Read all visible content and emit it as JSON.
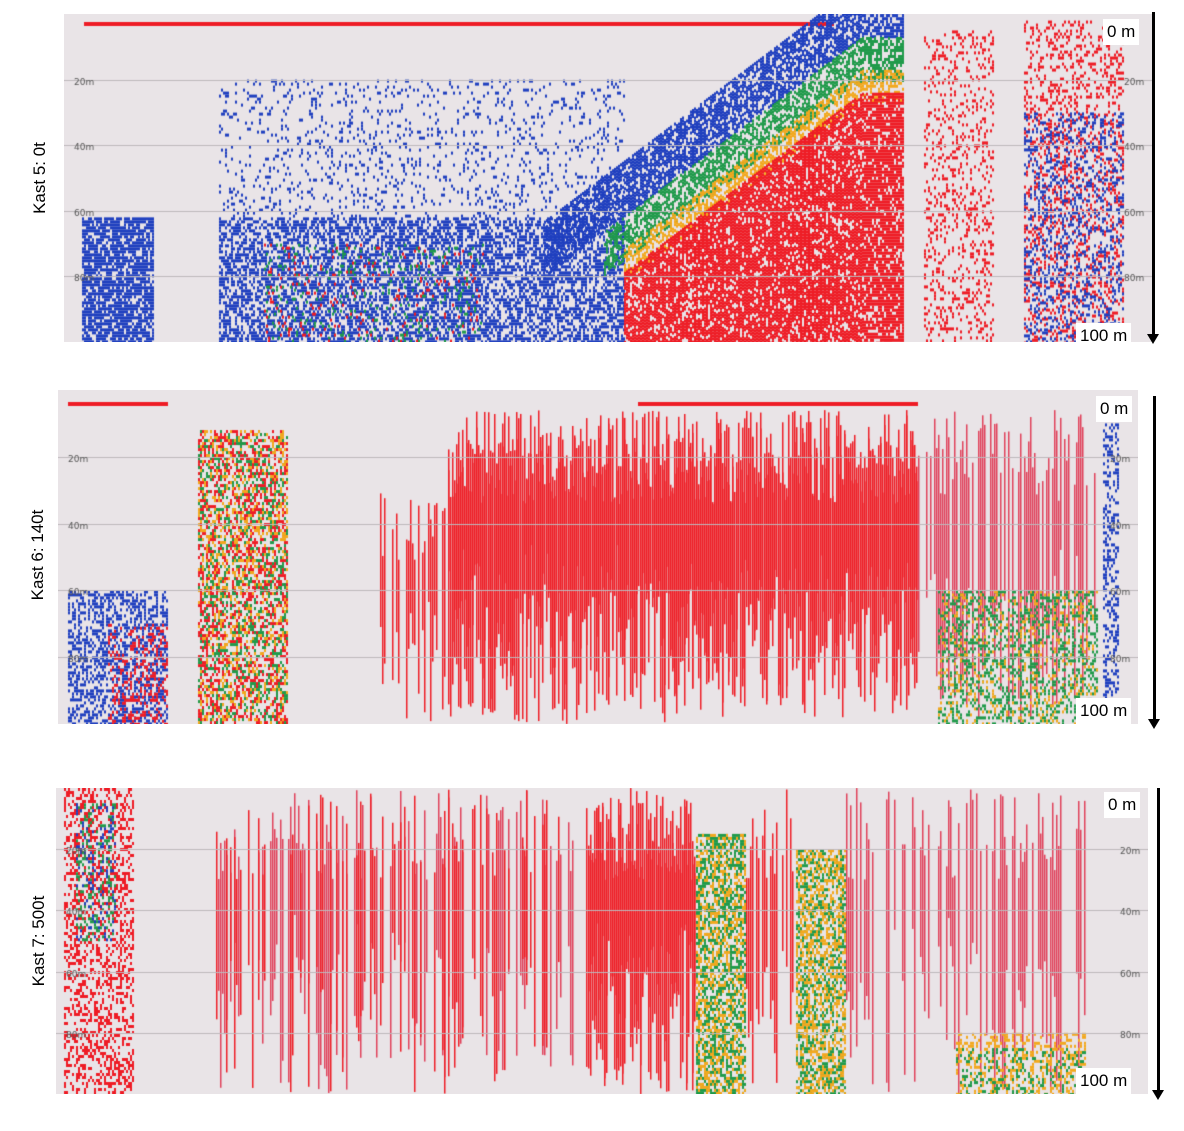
{
  "panels": [
    {
      "label": "Kast 5: 0t",
      "top_label": "0 m",
      "bottom_label": "100 m",
      "grid_labels": [
        "20m",
        "40m",
        "60m",
        "80m"
      ]
    },
    {
      "label": "Kast 6: 140t",
      "top_label": "0 m",
      "bottom_label": "100 m",
      "grid_labels": [
        "20m",
        "40m",
        "60m",
        "80m"
      ]
    },
    {
      "label": "Kast 7: 500t",
      "top_label": "0 m",
      "bottom_label": "100 m",
      "grid_labels": [
        "20m",
        "40m",
        "60m",
        "80m"
      ]
    }
  ],
  "colors": {
    "background": "#e9e4e7",
    "weak": "#1f3fbf",
    "low": "#1f9a4a",
    "mid": "#f2a81d",
    "high": "#ee1c25",
    "gridline": "#bdb8bb"
  }
}
